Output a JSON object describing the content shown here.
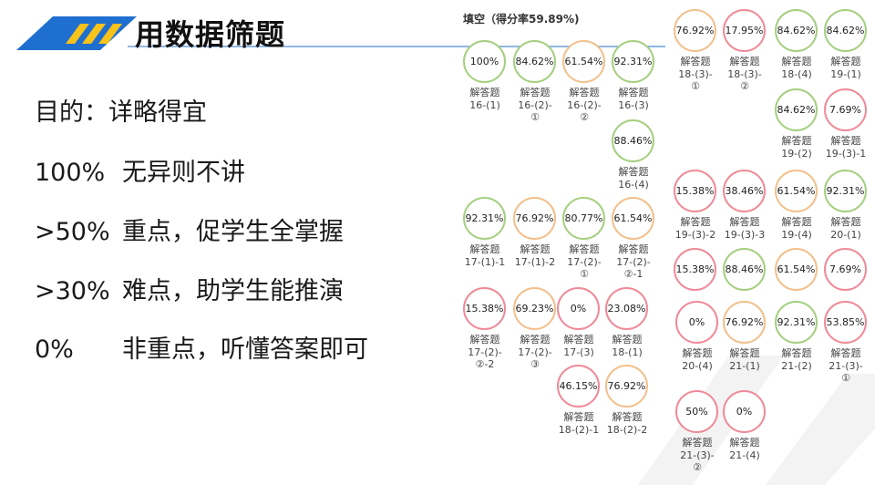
{
  "header": {
    "title": "用数据筛题",
    "colors": {
      "accent_blue": "#1f6fd0",
      "accent_yellow": "#f7c21a",
      "rule_blue": "#1f6fd0"
    }
  },
  "notes": [
    {
      "pct": "目的：详略得宜",
      "rule": ""
    },
    {
      "pct": "100%",
      "rule": "无异则不讲"
    },
    {
      "pct": ">50%",
      "rule": "重点，促学生全掌握"
    },
    {
      "pct": ">30%",
      "rule": "难点，助学生能推演"
    },
    {
      "pct": "0%",
      "rule": "非重点，听懂答案即可"
    }
  ],
  "panel": {
    "fill_header": "填空（得分率59.89%)",
    "items": [
      {
        "value": "100%",
        "label": "解答题\n16-(1)",
        "color": "green"
      },
      {
        "value": "84.62%",
        "label": "解答题\n16-(2)-\n①",
        "color": "green"
      },
      {
        "value": "61.54%",
        "label": "解答题\n16-(2)-\n②",
        "color": "orange"
      },
      {
        "value": "92.31%",
        "label": "解答题\n16-(3)",
        "color": "green"
      },
      {
        "value": "88.46%",
        "label": "解答题\n16-(4)",
        "color": "green"
      },
      {
        "value": "92.31%",
        "label": "解答题\n17-(1)-1",
        "color": "green"
      },
      {
        "value": "76.92%",
        "label": "解答题\n17-(1)-2",
        "color": "orange"
      },
      {
        "value": "80.77%",
        "label": "解答题\n17-(2)-\n①",
        "color": "green"
      },
      {
        "value": "61.54%",
        "label": "解答题\n17-(2)-\n②-1",
        "color": "orange"
      },
      {
        "value": "15.38%",
        "label": "解答题\n17-(2)-\n②-2",
        "color": "red"
      },
      {
        "value": "69.23%",
        "label": "解答题\n17-(2)-\n③",
        "color": "orange"
      },
      {
        "value": "0%",
        "label": "解答题\n17-(3)",
        "color": "red"
      },
      {
        "value": "23.08%",
        "label": "解答题\n18-(1)",
        "color": "red"
      },
      {
        "value": "46.15%",
        "label": "解答题\n18-(2)-1",
        "color": "red"
      },
      {
        "value": "76.92%",
        "label": "解答题\n18-(2)-2",
        "color": "orange"
      },
      {
        "value": "76.92%",
        "label": "解答题\n18-(3)-\n①",
        "color": "orange"
      },
      {
        "value": "17.95%",
        "label": "解答题\n18-(3)-\n②",
        "color": "red"
      },
      {
        "value": "84.62%",
        "label": "解答题\n18-(4)",
        "color": "green"
      },
      {
        "value": "84.62%",
        "label": "解答题\n19-(1)",
        "color": "green"
      },
      {
        "value": "84.62%",
        "label": "解答题\n19-(2)",
        "color": "green"
      },
      {
        "value": "7.69%",
        "label": "解答题\n19-(3)-1",
        "color": "red"
      },
      {
        "value": "15.38%",
        "label": "解答题\n19-(3)-2",
        "color": "red"
      },
      {
        "value": "38.46%",
        "label": "解答题\n19-(3)-3",
        "color": "red"
      },
      {
        "value": "61.54%",
        "label": "解答题\n19-(4)",
        "color": "orange"
      },
      {
        "value": "92.31%",
        "label": "解答题\n20-(1)",
        "color": "green"
      },
      {
        "value": "15.38%",
        "label": "",
        "color": "red"
      },
      {
        "value": "88.46%",
        "label": "",
        "color": "green"
      },
      {
        "value": "61.54%",
        "label": "",
        "color": "orange"
      },
      {
        "value": "7.69%",
        "label": "",
        "color": "red"
      },
      {
        "value": "0%",
        "label": "解答题\n20-(4)",
        "color": "red"
      },
      {
        "value": "76.92%",
        "label": "解答题\n21-(1)",
        "color": "orange"
      },
      {
        "value": "92.31%",
        "label": "解答题\n21-(2)",
        "color": "green"
      },
      {
        "value": "53.85%",
        "label": "解答题\n21-(3)-\n①",
        "color": "red"
      },
      {
        "value": "50%",
        "label": "解答题\n21-(3)-\n②",
        "color": "red"
      },
      {
        "value": "0%",
        "label": "解答题\n21-(4)",
        "color": "red"
      }
    ]
  }
}
